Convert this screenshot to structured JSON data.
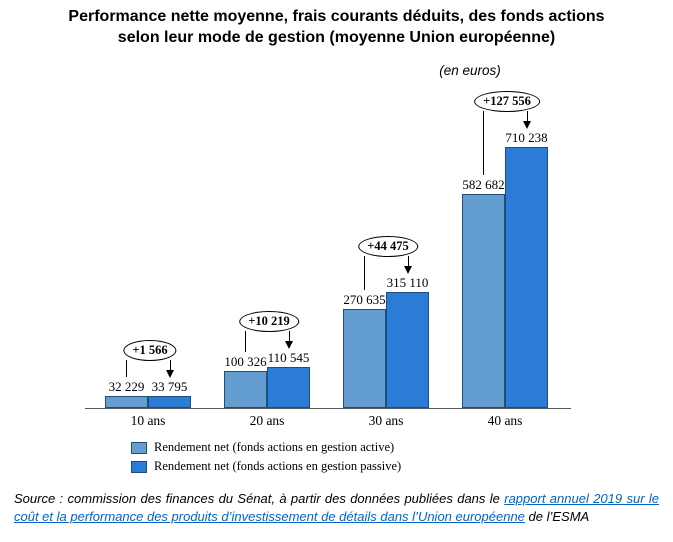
{
  "title": {
    "line1": "Performance nette moyenne, frais courants déduits, des fonds actions",
    "line2": "selon leur mode de gestion (moyenne Union européenne)"
  },
  "unit_note": "(en euros)",
  "chart_data": {
    "type": "bar",
    "title": "Performance nette moyenne, frais courants déduits, des fonds actions selon leur mode de gestion (moyenne Union européenne)",
    "unit": "en euros",
    "categories": [
      "10 ans",
      "20 ans",
      "30 ans",
      "40 ans"
    ],
    "series": [
      {
        "name": "Rendement net (fonds actions en gestion active)",
        "color": "#649DD0",
        "values": [
          32229,
          100326,
          270635,
          582682
        ],
        "value_labels": [
          "32 229",
          "100 326",
          "270 635",
          "582 682"
        ]
      },
      {
        "name": "Rendement net (fonds actions en gestion passive)",
        "color": "#2B7CD6",
        "values": [
          33795,
          110545,
          315110,
          710238
        ],
        "value_labels": [
          "33 795",
          "110 545",
          "315 110",
          "710 238"
        ]
      }
    ],
    "annotations": [
      {
        "label": "+1 566",
        "value": 1566
      },
      {
        "label": "+10 219",
        "value": 10219
      },
      {
        "label": "+44 475",
        "value": 44475
      },
      {
        "label": "+127 556",
        "value": 127556
      }
    ],
    "ylim": [
      0,
      710238
    ],
    "grid": false,
    "legend_position": "bottom-left",
    "bar_border_color": "#1F4E79",
    "axis_color": "#595959"
  },
  "source": {
    "prefix": "Source : commission des finances du Sénat, à partir des données publiées dans le ",
    "link_text": "rapport annuel 2019 sur le coût et la performance des produits d’investissement de détails dans l’Union européenne",
    "suffix": " de l’ESMA",
    "link_color": "#0563C1"
  }
}
